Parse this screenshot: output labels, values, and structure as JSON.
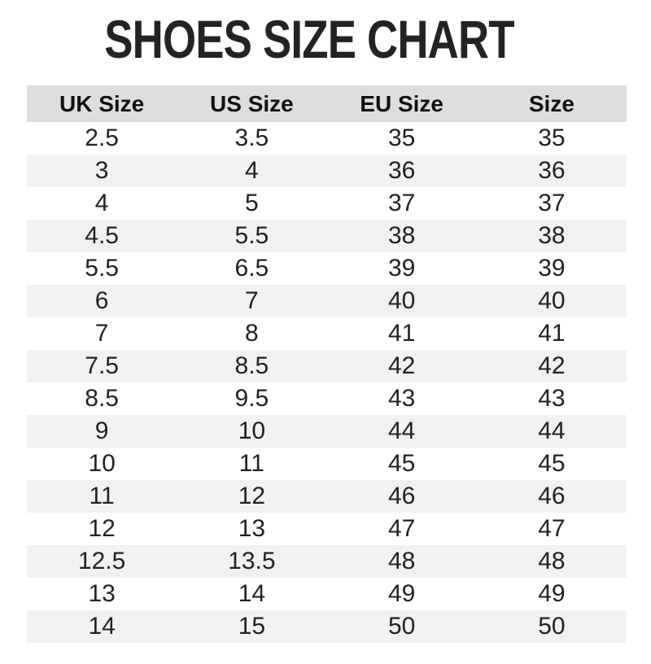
{
  "colors": {
    "page_bg": "#ffffff",
    "title_text": "#232323",
    "header_bg": "#dedede",
    "header_text": "#111111",
    "row_stripe_bg": "#f1f1f1",
    "cell_text": "#222222"
  },
  "chart_data": {
    "type": "table",
    "title": "SHOES SIZE CHART",
    "columns": [
      "UK Size",
      "US Size",
      "EU Size",
      "Size"
    ],
    "rows": [
      [
        "2.5",
        "3.5",
        "35",
        "35"
      ],
      [
        "3",
        "4",
        "36",
        "36"
      ],
      [
        "4",
        "5",
        "37",
        "37"
      ],
      [
        "4.5",
        "5.5",
        "38",
        "38"
      ],
      [
        "5.5",
        "6.5",
        "39",
        "39"
      ],
      [
        "6",
        "7",
        "40",
        "40"
      ],
      [
        "7",
        "8",
        "41",
        "41"
      ],
      [
        "7.5",
        "8.5",
        "42",
        "42"
      ],
      [
        "8.5",
        "9.5",
        "43",
        "43"
      ],
      [
        "9",
        "10",
        "44",
        "44"
      ],
      [
        "10",
        "11",
        "45",
        "45"
      ],
      [
        "11",
        "12",
        "46",
        "46"
      ],
      [
        "12",
        "13",
        "47",
        "47"
      ],
      [
        "12.5",
        "13.5",
        "48",
        "48"
      ],
      [
        "13",
        "14",
        "49",
        "49"
      ],
      [
        "14",
        "15",
        "50",
        "50"
      ]
    ],
    "layout": {
      "striped": true,
      "stripe_pattern": "even data rows shaded",
      "alignment": "center",
      "grid": false,
      "legend": "none"
    }
  }
}
